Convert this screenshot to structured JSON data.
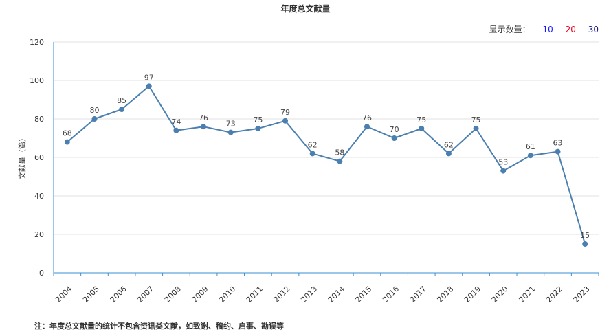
{
  "title": "年度总文献量",
  "count_switch": {
    "label": "显示数量：",
    "options": [
      {
        "text": "10",
        "color": "#1a1aff"
      },
      {
        "text": "20",
        "color": "#e8001c"
      },
      {
        "text": "30",
        "color": "#1a1a8c"
      }
    ]
  },
  "footnote": "注：年度总文献量的统计不包含资讯类文献，如致谢、稿约、启事、勘误等",
  "colors": {
    "line": "#4a7fb0",
    "axis": "#3a8fd0",
    "grid": "#e0e0e0"
  },
  "chart_data": {
    "type": "line",
    "title": "年度总文献量",
    "xlabel": "",
    "ylabel": "文献量（篇）",
    "ylim": [
      0,
      120
    ],
    "yticks": [
      0,
      20,
      40,
      60,
      80,
      100,
      120
    ],
    "grid": true,
    "categories": [
      "2004",
      "2005",
      "2006",
      "2007",
      "2008",
      "2009",
      "2010",
      "2011",
      "2012",
      "2013",
      "2014",
      "2015",
      "2016",
      "2017",
      "2018",
      "2019",
      "2020",
      "2021",
      "2022",
      "2023"
    ],
    "series": [
      {
        "values": [
          68,
          80,
          85,
          97,
          74,
          76,
          73,
          75,
          79,
          62,
          58,
          76,
          70,
          75,
          62,
          75,
          53,
          61,
          63,
          15
        ],
        "data_labels": [
          "68",
          "80",
          "85",
          "97",
          "74",
          "76",
          "73",
          "75",
          "79",
          "62",
          "58",
          "76",
          "70",
          "75",
          "62",
          "75",
          "53",
          "61",
          "63",
          "15"
        ]
      }
    ]
  }
}
